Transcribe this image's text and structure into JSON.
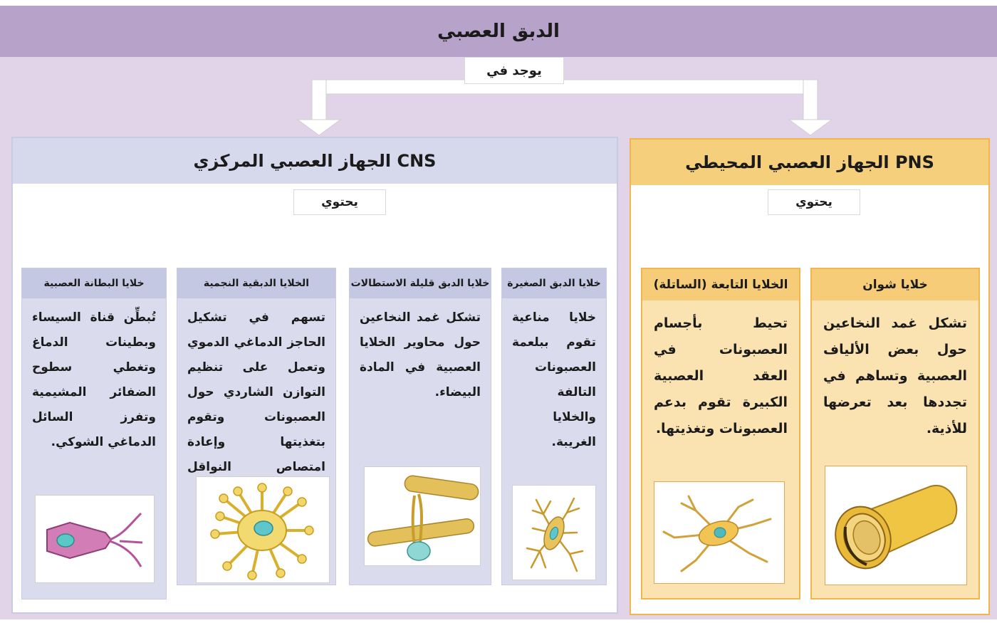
{
  "title": "الدبق العصبي",
  "located_in": "يوجد في",
  "cns": {
    "header": "الجهاز العصبي المركزي CNS",
    "contains": "يحتوي",
    "cells": [
      {
        "name": "خلايا البطانة العصبية",
        "text": "تُبطِّن قناة السيساء وبطينات الدماغ وتغطي سطوح الضفائر المشيمية وتفرز السائل الدماغي الشوكي."
      },
      {
        "name": "الخلايا الدبقية النجمية",
        "text": "تسهم في تشكيل الحاجز الدماغي الدموي وتعمل على تنظيم التوازن الشاردي حول العصبونات وتقوم بتغذيتها وإعادة امتصاص النواقل العصبية."
      },
      {
        "name": "خلايا الدبق قليلة الاستطالات",
        "text": "تشكل غمد النخاعين حول محاوير الخلايا العصبية في المادة البيضاء."
      },
      {
        "name": "خلايا الدبق الصغيرة",
        "text": "خلايا مناعية تقوم ببلعمة العصبونات التالفة والخلايا الغريبة."
      }
    ]
  },
  "pns": {
    "header": "الجهاز العصبي المحيطي PNS",
    "contains": "يحتوي",
    "cells": [
      {
        "name": "الخلايا التابعة (الساتلة)",
        "text": "تحيط بأجسام العصبونات في العقد العصبية الكبيرة تقوم بدعم العصبونات وتغذيتها."
      },
      {
        "name": "خلايا شوان",
        "text": "تشكل غمد النخاعين حول بعض الألياف العصبية وتساهم في تجددها بعد تعرضها للأذية."
      }
    ]
  },
  "colors": {
    "purple_bar": "#b7a2c9",
    "purple_bg": "#e2d4e8",
    "cns_blue": "#d6d9ec",
    "pns_orange": "#f6cf7d"
  }
}
